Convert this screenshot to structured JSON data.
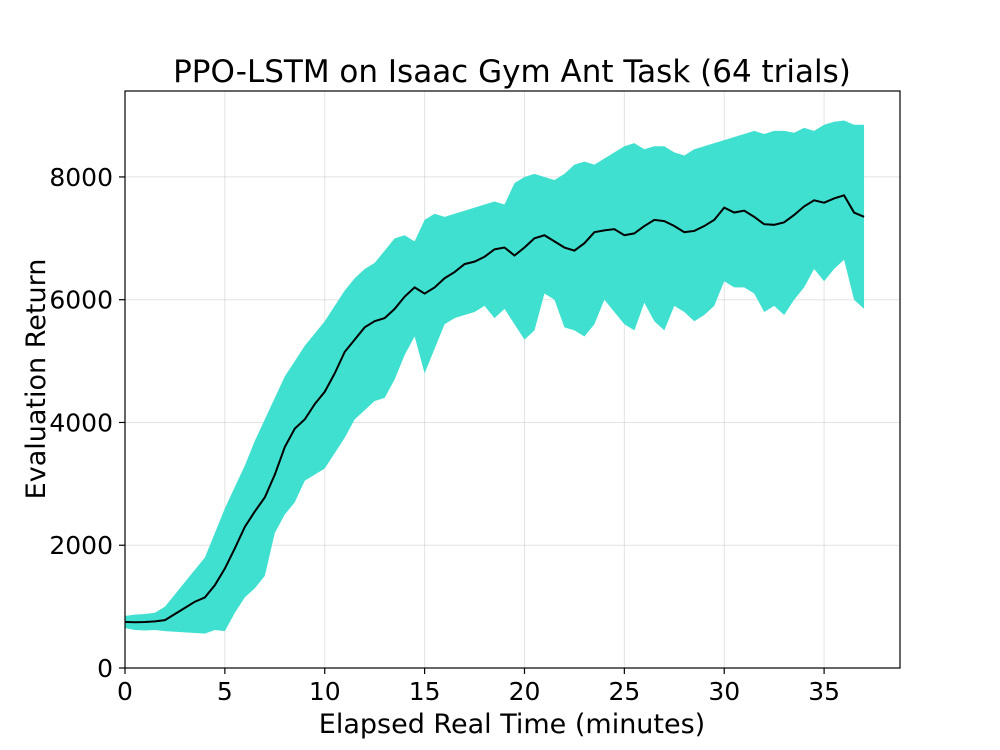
{
  "chart_data": {
    "type": "area",
    "title": "PPO-LSTM on Isaac Gym Ant Task (64 trials)",
    "xlabel": "Elapsed Real Time (minutes)",
    "ylabel": "Evaluation Return",
    "xlim": [
      0,
      38.8
    ],
    "ylim": [
      0,
      9400
    ],
    "x_ticks": [
      0,
      5,
      10,
      15,
      20,
      25,
      30,
      35
    ],
    "y_ticks": [
      0,
      2000,
      4000,
      6000,
      8000
    ],
    "grid": true,
    "band_color": "#40e0d0",
    "line_color": "#000000",
    "series": [
      {
        "x": [
          0,
          0.5,
          1,
          1.5,
          2,
          2.5,
          3,
          3.5,
          4,
          4.5,
          5,
          5.5,
          6,
          6.5,
          7,
          7.5,
          8,
          8.5,
          9,
          9.5,
          10,
          10.5,
          11,
          11.5,
          12,
          12.5,
          13,
          13.5,
          14,
          14.5,
          15,
          15.5,
          16,
          16.5,
          17,
          17.5,
          18,
          18.5,
          19,
          19.5,
          20,
          20.5,
          21,
          21.5,
          22,
          22.5,
          23,
          23.5,
          24,
          24.5,
          25,
          25.5,
          26,
          26.5,
          27,
          27.5,
          28,
          28.5,
          29,
          29.5,
          30,
          30.5,
          31,
          31.5,
          32,
          32.5,
          33,
          33.5,
          34,
          34.5,
          35,
          35.5,
          36,
          36.5,
          37
        ],
        "mean": [
          750,
          745,
          750,
          760,
          780,
          880,
          980,
          1080,
          1150,
          1350,
          1620,
          1950,
          2300,
          2550,
          2780,
          3150,
          3600,
          3900,
          4050,
          4300,
          4500,
          4800,
          5150,
          5350,
          5550,
          5650,
          5700,
          5850,
          6050,
          6200,
          6100,
          6200,
          6350,
          6450,
          6580,
          6620,
          6700,
          6820,
          6850,
          6720,
          6850,
          7000,
          7050,
          6950,
          6850,
          6800,
          6920,
          7100,
          7130,
          7150,
          7050,
          7080,
          7200,
          7300,
          7280,
          7200,
          7100,
          7120,
          7200,
          7300,
          7500,
          7420,
          7450,
          7350,
          7230,
          7220,
          7260,
          7380,
          7520,
          7620,
          7580,
          7650,
          7700,
          7420,
          7350
        ],
        "upper": [
          850,
          870,
          880,
          900,
          1000,
          1200,
          1400,
          1600,
          1800,
          2200,
          2600,
          2950,
          3300,
          3700,
          4050,
          4400,
          4750,
          5000,
          5250,
          5450,
          5650,
          5900,
          6150,
          6350,
          6500,
          6600,
          6800,
          7000,
          7050,
          6950,
          7300,
          7400,
          7350,
          7400,
          7450,
          7500,
          7550,
          7600,
          7550,
          7900,
          8000,
          8050,
          8000,
          7950,
          8050,
          8200,
          8250,
          8200,
          8300,
          8400,
          8500,
          8550,
          8450,
          8500,
          8500,
          8400,
          8350,
          8450,
          8500,
          8550,
          8600,
          8650,
          8700,
          8750,
          8700,
          8750,
          8750,
          8720,
          8800,
          8750,
          8850,
          8900,
          8920,
          8850,
          8850
        ],
        "lower": [
          650,
          620,
          610,
          620,
          600,
          590,
          580,
          570,
          560,
          620,
          600,
          900,
          1150,
          1300,
          1500,
          2200,
          2500,
          2700,
          3050,
          3150,
          3250,
          3500,
          3750,
          4050,
          4200,
          4350,
          4400,
          4700,
          5100,
          5400,
          4800,
          5200,
          5600,
          5700,
          5750,
          5800,
          5900,
          5700,
          5850,
          5600,
          5350,
          5500,
          6100,
          6000,
          5550,
          5500,
          5400,
          5600,
          6000,
          5800,
          5600,
          5500,
          5950,
          5650,
          5500,
          5900,
          5800,
          5650,
          5750,
          5900,
          6300,
          6200,
          6200,
          6100,
          5800,
          5900,
          5750,
          6000,
          6200,
          6500,
          6300,
          6500,
          6650,
          6000,
          5850
        ]
      }
    ]
  }
}
